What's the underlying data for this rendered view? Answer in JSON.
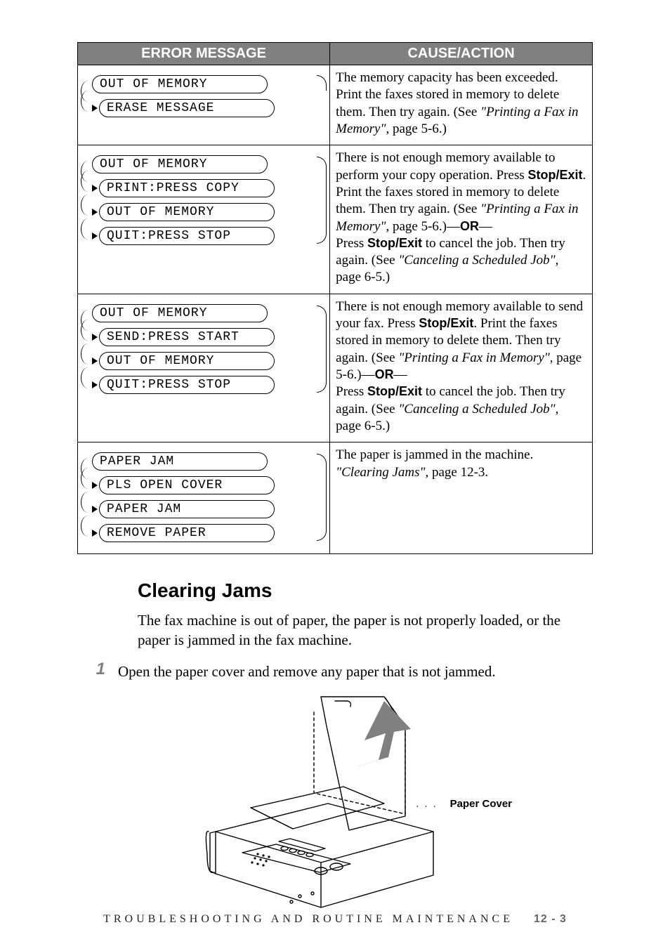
{
  "table": {
    "headers": {
      "msg": "ERROR MESSAGE",
      "cause": "CAUSE/ACTION"
    },
    "rows": [
      {
        "lcds": [
          "OUT OF MEMORY",
          "ERASE MESSAGE"
        ],
        "bracket": "single-arrow",
        "cause_parts": [
          {
            "t": "The memory capacity has been exceeded. Print the faxes stored in memory to delete them. Then try again. (See "
          },
          {
            "t": "\"Printing a Fax in Memory\",",
            "ital": true
          },
          {
            "t": " page 5-6.)"
          }
        ]
      },
      {
        "lcds": [
          "OUT OF MEMORY",
          "PRINT:PRESS COPY",
          "OUT OF MEMORY",
          "QUIT:PRESS STOP"
        ],
        "bracket": "full",
        "cause_parts": [
          {
            "t": "There is not enough memory available to perform your copy operation. Press "
          },
          {
            "t": "Stop/Exit",
            "bold": true
          },
          {
            "t": ". Print the faxes stored in memory to delete them. Then try again. (See "
          },
          {
            "t": "\"Printing a Fax in Memory\",",
            "ital": true
          },
          {
            "t": " page 5-6.)—"
          },
          {
            "t": "OR",
            "bold": true
          },
          {
            "t": "—\nPress "
          },
          {
            "t": "Stop/Exit",
            "bold": true
          },
          {
            "t": " to cancel the job. Then try again. (See "
          },
          {
            "t": "\"Canceling a Scheduled Job\",",
            "ital": true
          },
          {
            "t": " page 6-5.)"
          }
        ]
      },
      {
        "lcds": [
          "OUT OF MEMORY",
          "SEND:PRESS START",
          "OUT OF MEMORY",
          "QUIT:PRESS STOP"
        ],
        "bracket": "full",
        "cause_parts": [
          {
            "t": "There is not enough memory available to send your fax. Press "
          },
          {
            "t": "Stop/Exit",
            "bold": true
          },
          {
            "t": ". Print the faxes stored in memory to delete them. Then try again. (See "
          },
          {
            "t": "\"Printing a Fax in Memory\",",
            "ital": true
          },
          {
            "t": " page 5-6.)—"
          },
          {
            "t": "OR",
            "bold": true
          },
          {
            "t": "—\nPress "
          },
          {
            "t": "Stop/Exit",
            "bold": true
          },
          {
            "t": " to cancel the job. Then try again. (See "
          },
          {
            "t": "\"Canceling a Scheduled Job\",",
            "ital": true
          },
          {
            "t": " page 6-5.)"
          }
        ]
      },
      {
        "lcds": [
          "PAPER JAM",
          "PLS OPEN COVER",
          "PAPER JAM",
          "REMOVE PAPER"
        ],
        "bracket": "full",
        "cause_parts": [
          {
            "t": "The paper is jammed in the machine. "
          },
          {
            "t": "\"Clearing Jams\",",
            "ital": true
          },
          {
            "t": " page 12-3."
          }
        ]
      }
    ]
  },
  "heading": "Clearing Jams",
  "intro": "The fax machine is out of paper, the paper is not properly loaded, or the paper is jammed in the fax machine.",
  "step1_num": "1",
  "step1_text": "Open the paper cover and remove any paper that is not jammed.",
  "paper_cover_label": "Paper Cover",
  "footer_text": "TROUBLESHOOTING AND ROUTINE MAINTENANCE",
  "footer_page": "12 - 3",
  "colors": {
    "header_bg": "#808080",
    "header_fg": "#ffffff",
    "rule": "#000000",
    "step_num": "#808080",
    "arrow_fill": "#808080"
  }
}
